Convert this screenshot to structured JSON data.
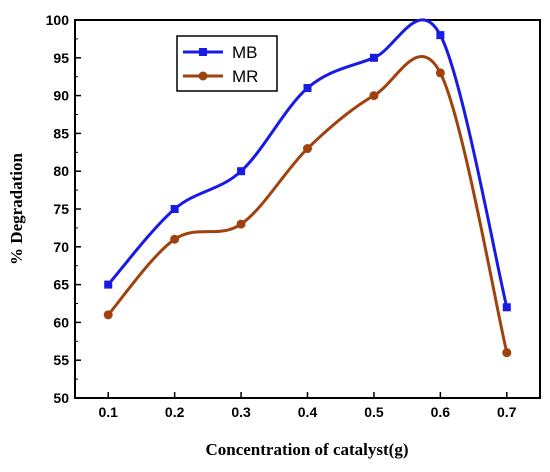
{
  "chart_data": {
    "type": "line",
    "title": "",
    "xlabel": "Concentration of catalyst(g)",
    "ylabel": "% Degradation",
    "x": [
      0.1,
      0.2,
      0.3,
      0.4,
      0.5,
      0.6,
      0.7
    ],
    "x_tick_labels": [
      "0.1",
      "0.2",
      "0.3",
      "0.4",
      "0.5",
      "0.6",
      "0.7"
    ],
    "y_tick_labels": [
      "50",
      "55",
      "60",
      "65",
      "70",
      "75",
      "80",
      "85",
      "90",
      "95",
      "100"
    ],
    "xlim": [
      0.05,
      0.75
    ],
    "ylim": [
      50,
      100
    ],
    "grid": false,
    "legend_position": "top-left",
    "series": [
      {
        "name": "MB",
        "values": [
          65,
          75,
          80,
          91,
          95,
          98,
          62
        ],
        "color": "#1a1ae6",
        "marker": "square",
        "marker_color": "#1a1ae6"
      },
      {
        "name": "MR",
        "values": [
          61,
          71,
          73,
          83,
          90,
          93,
          56
        ],
        "color": "#a0420f",
        "marker": "circle",
        "marker_color": "#a0420f"
      }
    ]
  }
}
